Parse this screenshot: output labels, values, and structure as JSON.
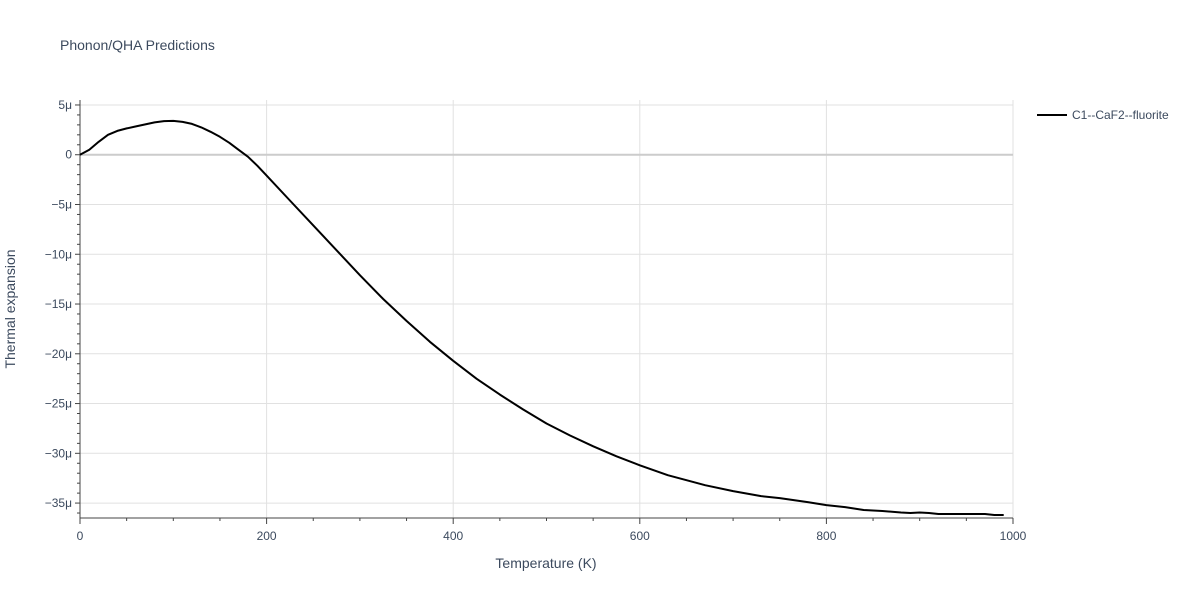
{
  "chart_data": {
    "type": "line",
    "title": "Phonon/QHA Predictions",
    "xlabel": "Temperature (K)",
    "ylabel": "Thermal expansion",
    "xlim": [
      0,
      1000
    ],
    "ylim": [
      -36.5,
      5.5
    ],
    "y_unit_scale": "micro",
    "x_ticks": [
      0,
      200,
      400,
      600,
      800,
      1000
    ],
    "x_tick_labels": [
      "0",
      "200",
      "400",
      "600",
      "800",
      "1000"
    ],
    "y_ticks": [
      5,
      0,
      -5,
      -10,
      -15,
      -20,
      -25,
      -30,
      -35
    ],
    "y_tick_labels": [
      "5μ",
      "0",
      "−5μ",
      "−10μ",
      "−15μ",
      "−20μ",
      "−25μ",
      "−30μ",
      "−35μ"
    ],
    "grid": true,
    "legend_position": "top-right",
    "series": [
      {
        "name": "C1--CaF2--fluorite",
        "color": "#000000",
        "x": [
          0,
          10,
          20,
          30,
          40,
          50,
          60,
          70,
          80,
          90,
          100,
          110,
          120,
          130,
          140,
          150,
          160,
          170,
          180,
          190,
          200,
          225,
          250,
          275,
          300,
          325,
          350,
          375,
          400,
          425,
          450,
          475,
          500,
          525,
          550,
          575,
          600,
          630,
          650,
          670,
          700,
          730,
          750,
          780,
          800,
          820,
          840,
          860,
          880,
          890,
          900,
          910,
          920,
          940,
          960,
          970,
          980,
          990
        ],
        "y": [
          0,
          0.5,
          1.3,
          2.0,
          2.4,
          2.65,
          2.85,
          3.05,
          3.25,
          3.38,
          3.4,
          3.3,
          3.1,
          2.75,
          2.3,
          1.8,
          1.2,
          0.5,
          -0.2,
          -1.1,
          -2.1,
          -4.6,
          -7.1,
          -9.6,
          -12.1,
          -14.5,
          -16.7,
          -18.8,
          -20.7,
          -22.5,
          -24.1,
          -25.6,
          -27.0,
          -28.2,
          -29.3,
          -30.3,
          -31.2,
          -32.2,
          -32.7,
          -33.2,
          -33.8,
          -34.3,
          -34.5,
          -34.9,
          -35.2,
          -35.4,
          -35.7,
          -35.8,
          -35.95,
          -36.0,
          -35.95,
          -36.0,
          -36.1,
          -36.1,
          -36.1,
          -36.1,
          -36.2,
          -36.2
        ]
      }
    ]
  }
}
